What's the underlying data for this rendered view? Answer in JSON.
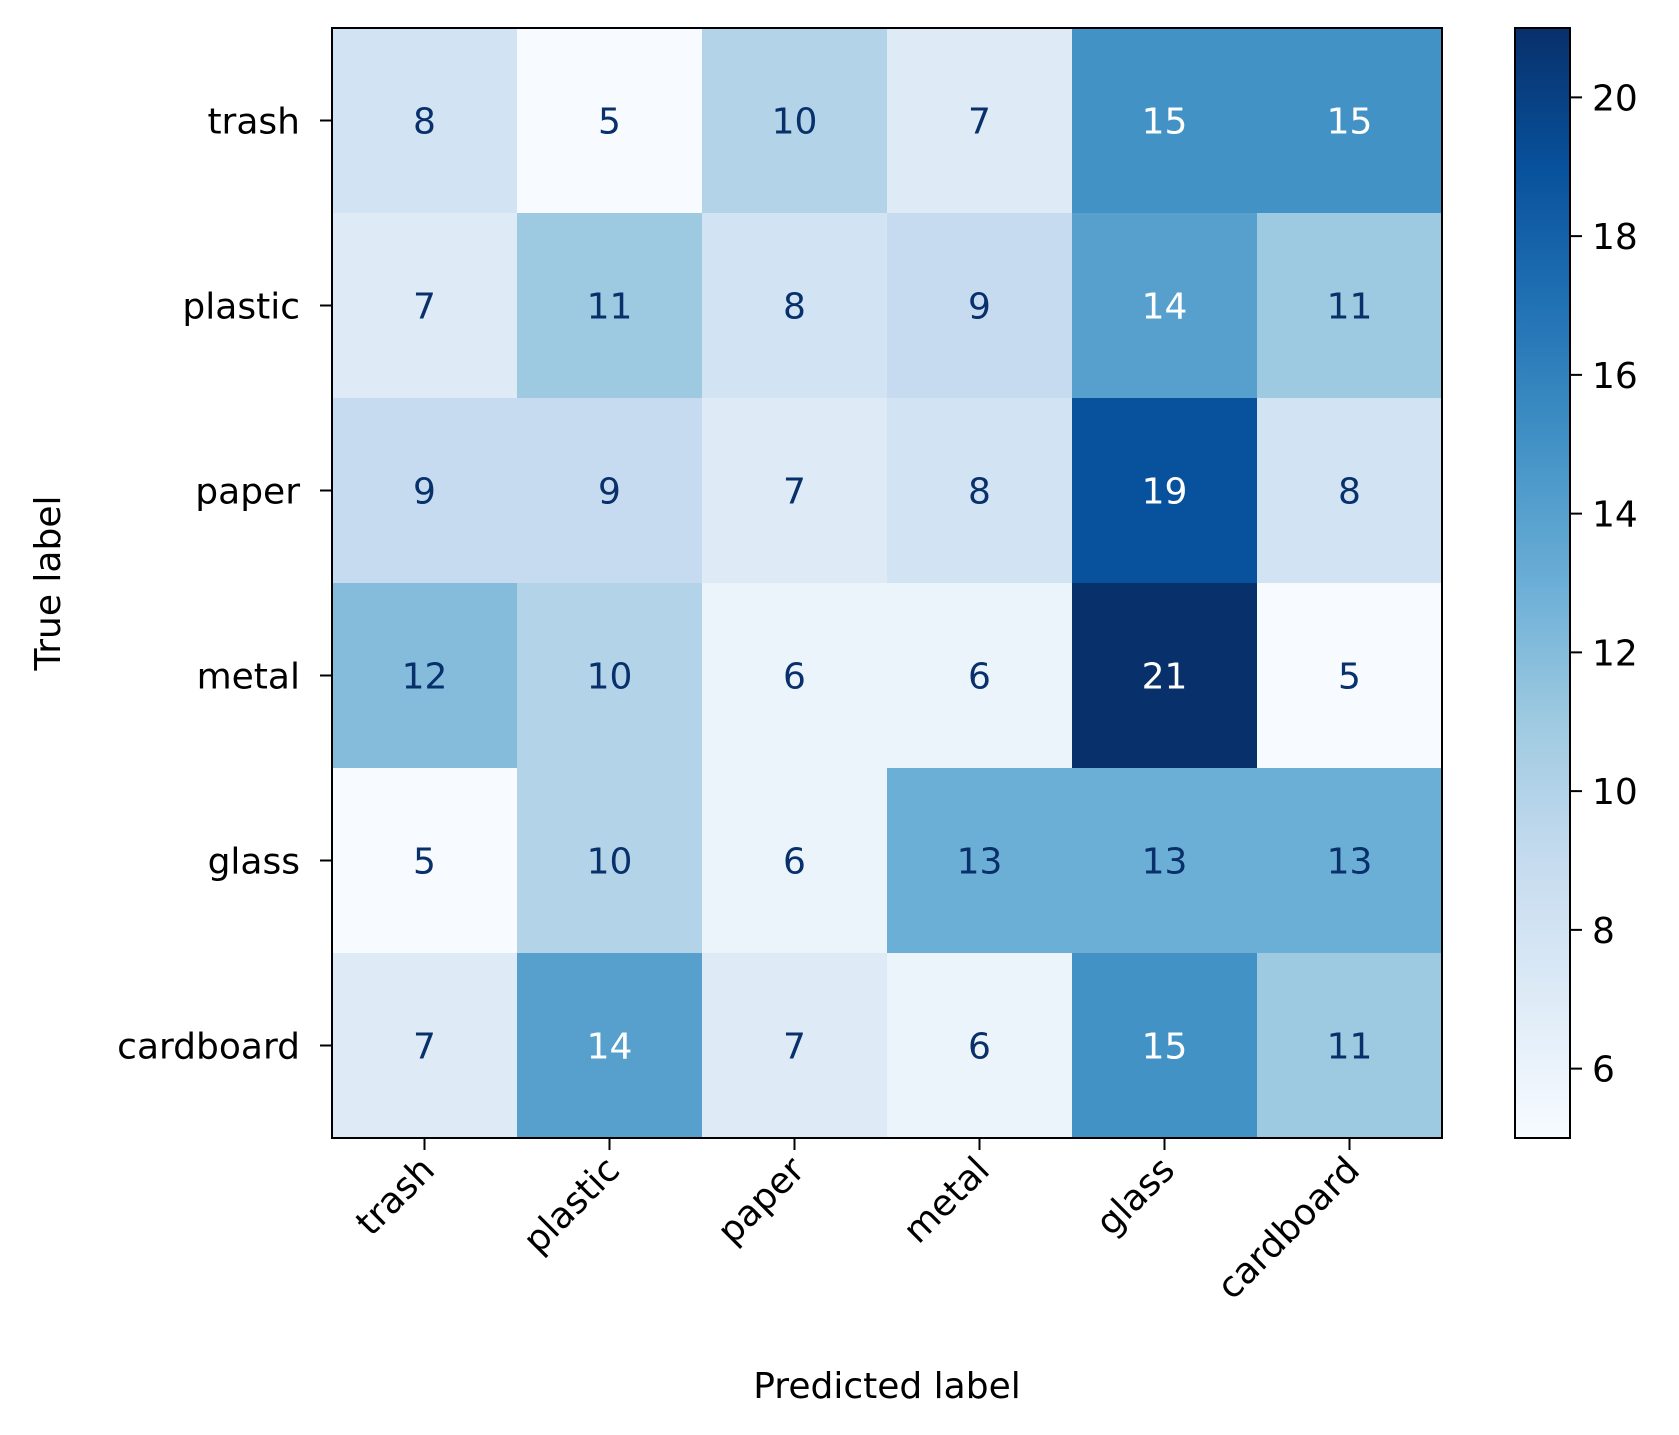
{
  "chart_data": {
    "type": "heatmap",
    "title": "",
    "xlabel": "Predicted label",
    "ylabel": "True label",
    "x_categories": [
      "trash",
      "plastic",
      "paper",
      "metal",
      "glass",
      "cardboard"
    ],
    "y_categories": [
      "trash",
      "plastic",
      "paper",
      "metal",
      "glass",
      "cardboard"
    ],
    "values": [
      [
        8,
        5,
        10,
        7,
        15,
        15
      ],
      [
        7,
        11,
        8,
        9,
        14,
        11
      ],
      [
        9,
        9,
        7,
        8,
        19,
        8
      ],
      [
        12,
        10,
        6,
        6,
        21,
        5
      ],
      [
        5,
        10,
        6,
        13,
        13,
        13
      ],
      [
        7,
        14,
        7,
        6,
        15,
        11
      ]
    ],
    "colormap": "Blues",
    "colorbar": {
      "range": [
        5,
        21
      ],
      "ticks": [
        6,
        8,
        10,
        12,
        14,
        16,
        18,
        20
      ]
    },
    "text_colors": {
      "dark": "#08306b",
      "light": "#ffffff"
    },
    "grid": false
  }
}
